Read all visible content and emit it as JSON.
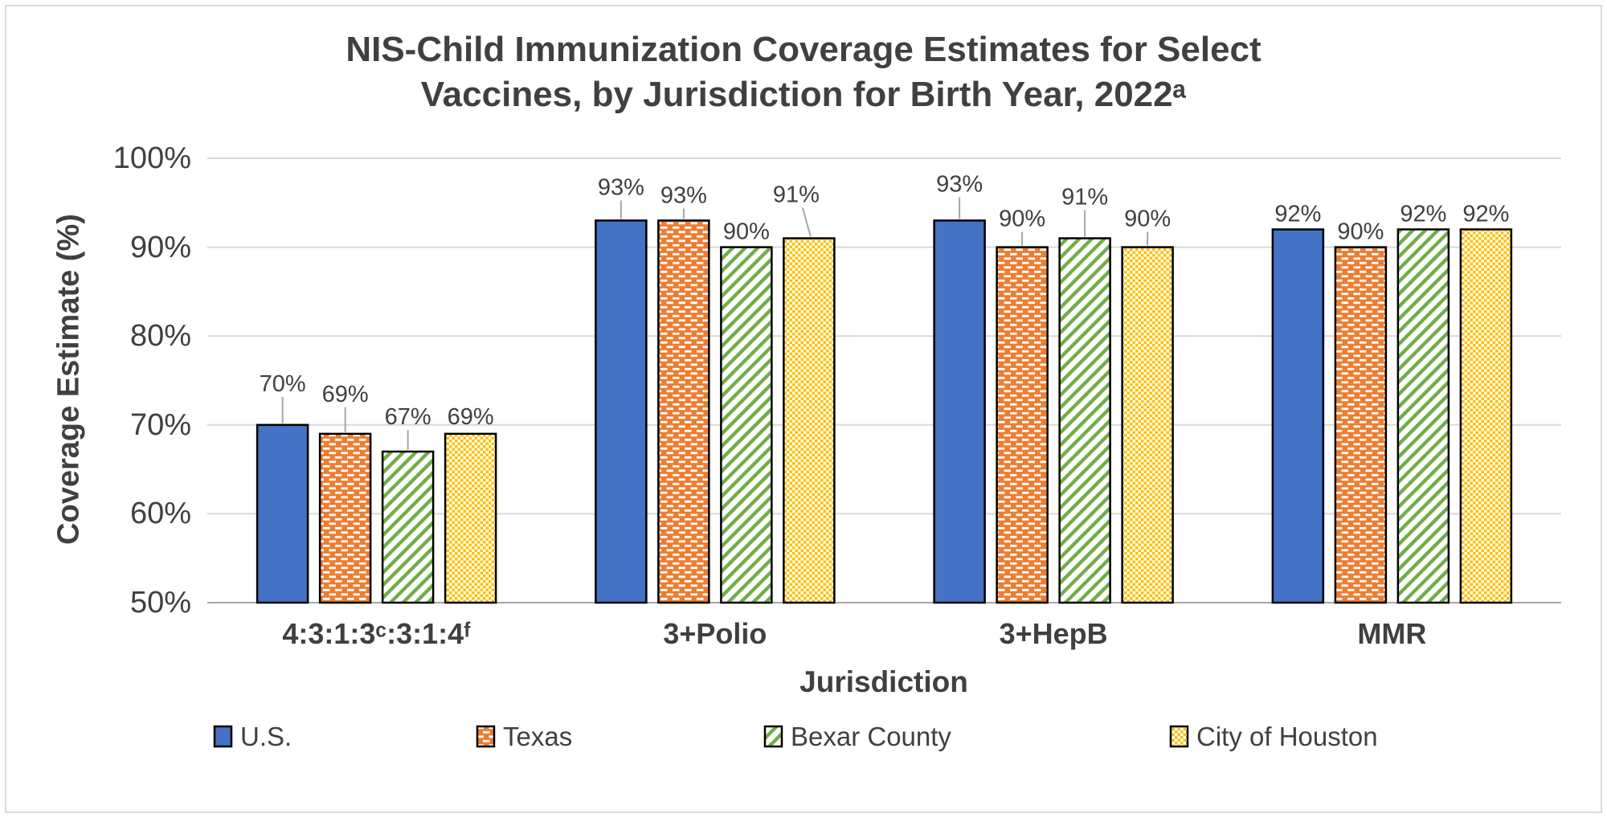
{
  "title": {
    "line1": "NIS-Child Immunization Coverage Estimates for Select",
    "line2": "Vaccines, by Jurisdiction for Birth Year, 2022ᵃ"
  },
  "y_axis": {
    "title": "Coverage Estimate (%)",
    "ticks": [
      "100%",
      "90%",
      "80%",
      "70%",
      "60%",
      "50%"
    ]
  },
  "x_axis": {
    "title": "Jurisdiction",
    "categories": [
      "4:3:1:3ᶜ:3:1:4ᶠ",
      "3+Polio",
      "3+HepB",
      "MMR"
    ]
  },
  "legend": {
    "position": "bottom",
    "items": [
      "U.S.",
      "Texas",
      "Bexar County",
      "City of Houston"
    ]
  },
  "colors": {
    "us_blue": "#4472C4",
    "texas_orange": "#ED7D31",
    "bexar_green": "#70AD47",
    "houston_gold": "#FFC000",
    "text_gray": "#404040",
    "gridline_gray": "#D9D9D9",
    "axis_line_gray": "#A6A6A6",
    "bar_border": "#000000"
  },
  "chart_data": {
    "type": "bar",
    "title": "NIS-Child Immunization Coverage Estimates for Select Vaccines, by Jurisdiction for Birth Year, 2022ᵃ",
    "xlabel": "Jurisdiction",
    "ylabel": "Coverage Estimate (%)",
    "ylim": [
      50,
      100
    ],
    "ytick_step": 10,
    "value_suffix": "%",
    "grid": true,
    "legend_position": "bottom",
    "categories": [
      "4:3:1:3ᶜ:3:1:4ᶠ",
      "3+Polio",
      "3+HepB",
      "MMR"
    ],
    "series": [
      {
        "name": "U.S.",
        "color": "#4472C4",
        "pattern": "solid",
        "values": [
          70,
          93,
          93,
          92
        ],
        "labels": [
          "70%",
          "93%",
          "93%",
          "92%"
        ]
      },
      {
        "name": "Texas",
        "color": "#ED7D31",
        "pattern": "horizontal-dashes",
        "values": [
          69,
          93,
          90,
          90
        ],
        "labels": [
          "69%",
          "93%",
          "90%",
          "90%"
        ]
      },
      {
        "name": "Bexar County",
        "color": "#70AD47",
        "pattern": "diagonal-stripes",
        "values": [
          67,
          90,
          91,
          92
        ],
        "labels": [
          "67%",
          "90%",
          "91%",
          "92%"
        ]
      },
      {
        "name": "City of Houston",
        "color": "#FFC000",
        "pattern": "dotted-grid",
        "values": [
          69,
          91,
          90,
          92
        ],
        "labels": [
          "69%",
          "91%",
          "90%",
          "92%"
        ]
      }
    ],
    "label_lift": [
      [
        52,
        50,
        44,
        22
      ],
      [
        42,
        32,
        20,
        55
      ],
      [
        46,
        36,
        52,
        36
      ],
      [
        20,
        20,
        20,
        20
      ]
    ],
    "leader_lines": [
      [
        1,
        1,
        1,
        0
      ],
      [
        1,
        1,
        0,
        1
      ],
      [
        1,
        1,
        1,
        1
      ],
      [
        0,
        0,
        0,
        0
      ]
    ],
    "label_dx": [
      [
        0,
        0,
        0,
        0
      ],
      [
        0,
        0,
        0,
        -16
      ],
      [
        0,
        0,
        0,
        0
      ],
      [
        0,
        0,
        0,
        0
      ]
    ]
  }
}
